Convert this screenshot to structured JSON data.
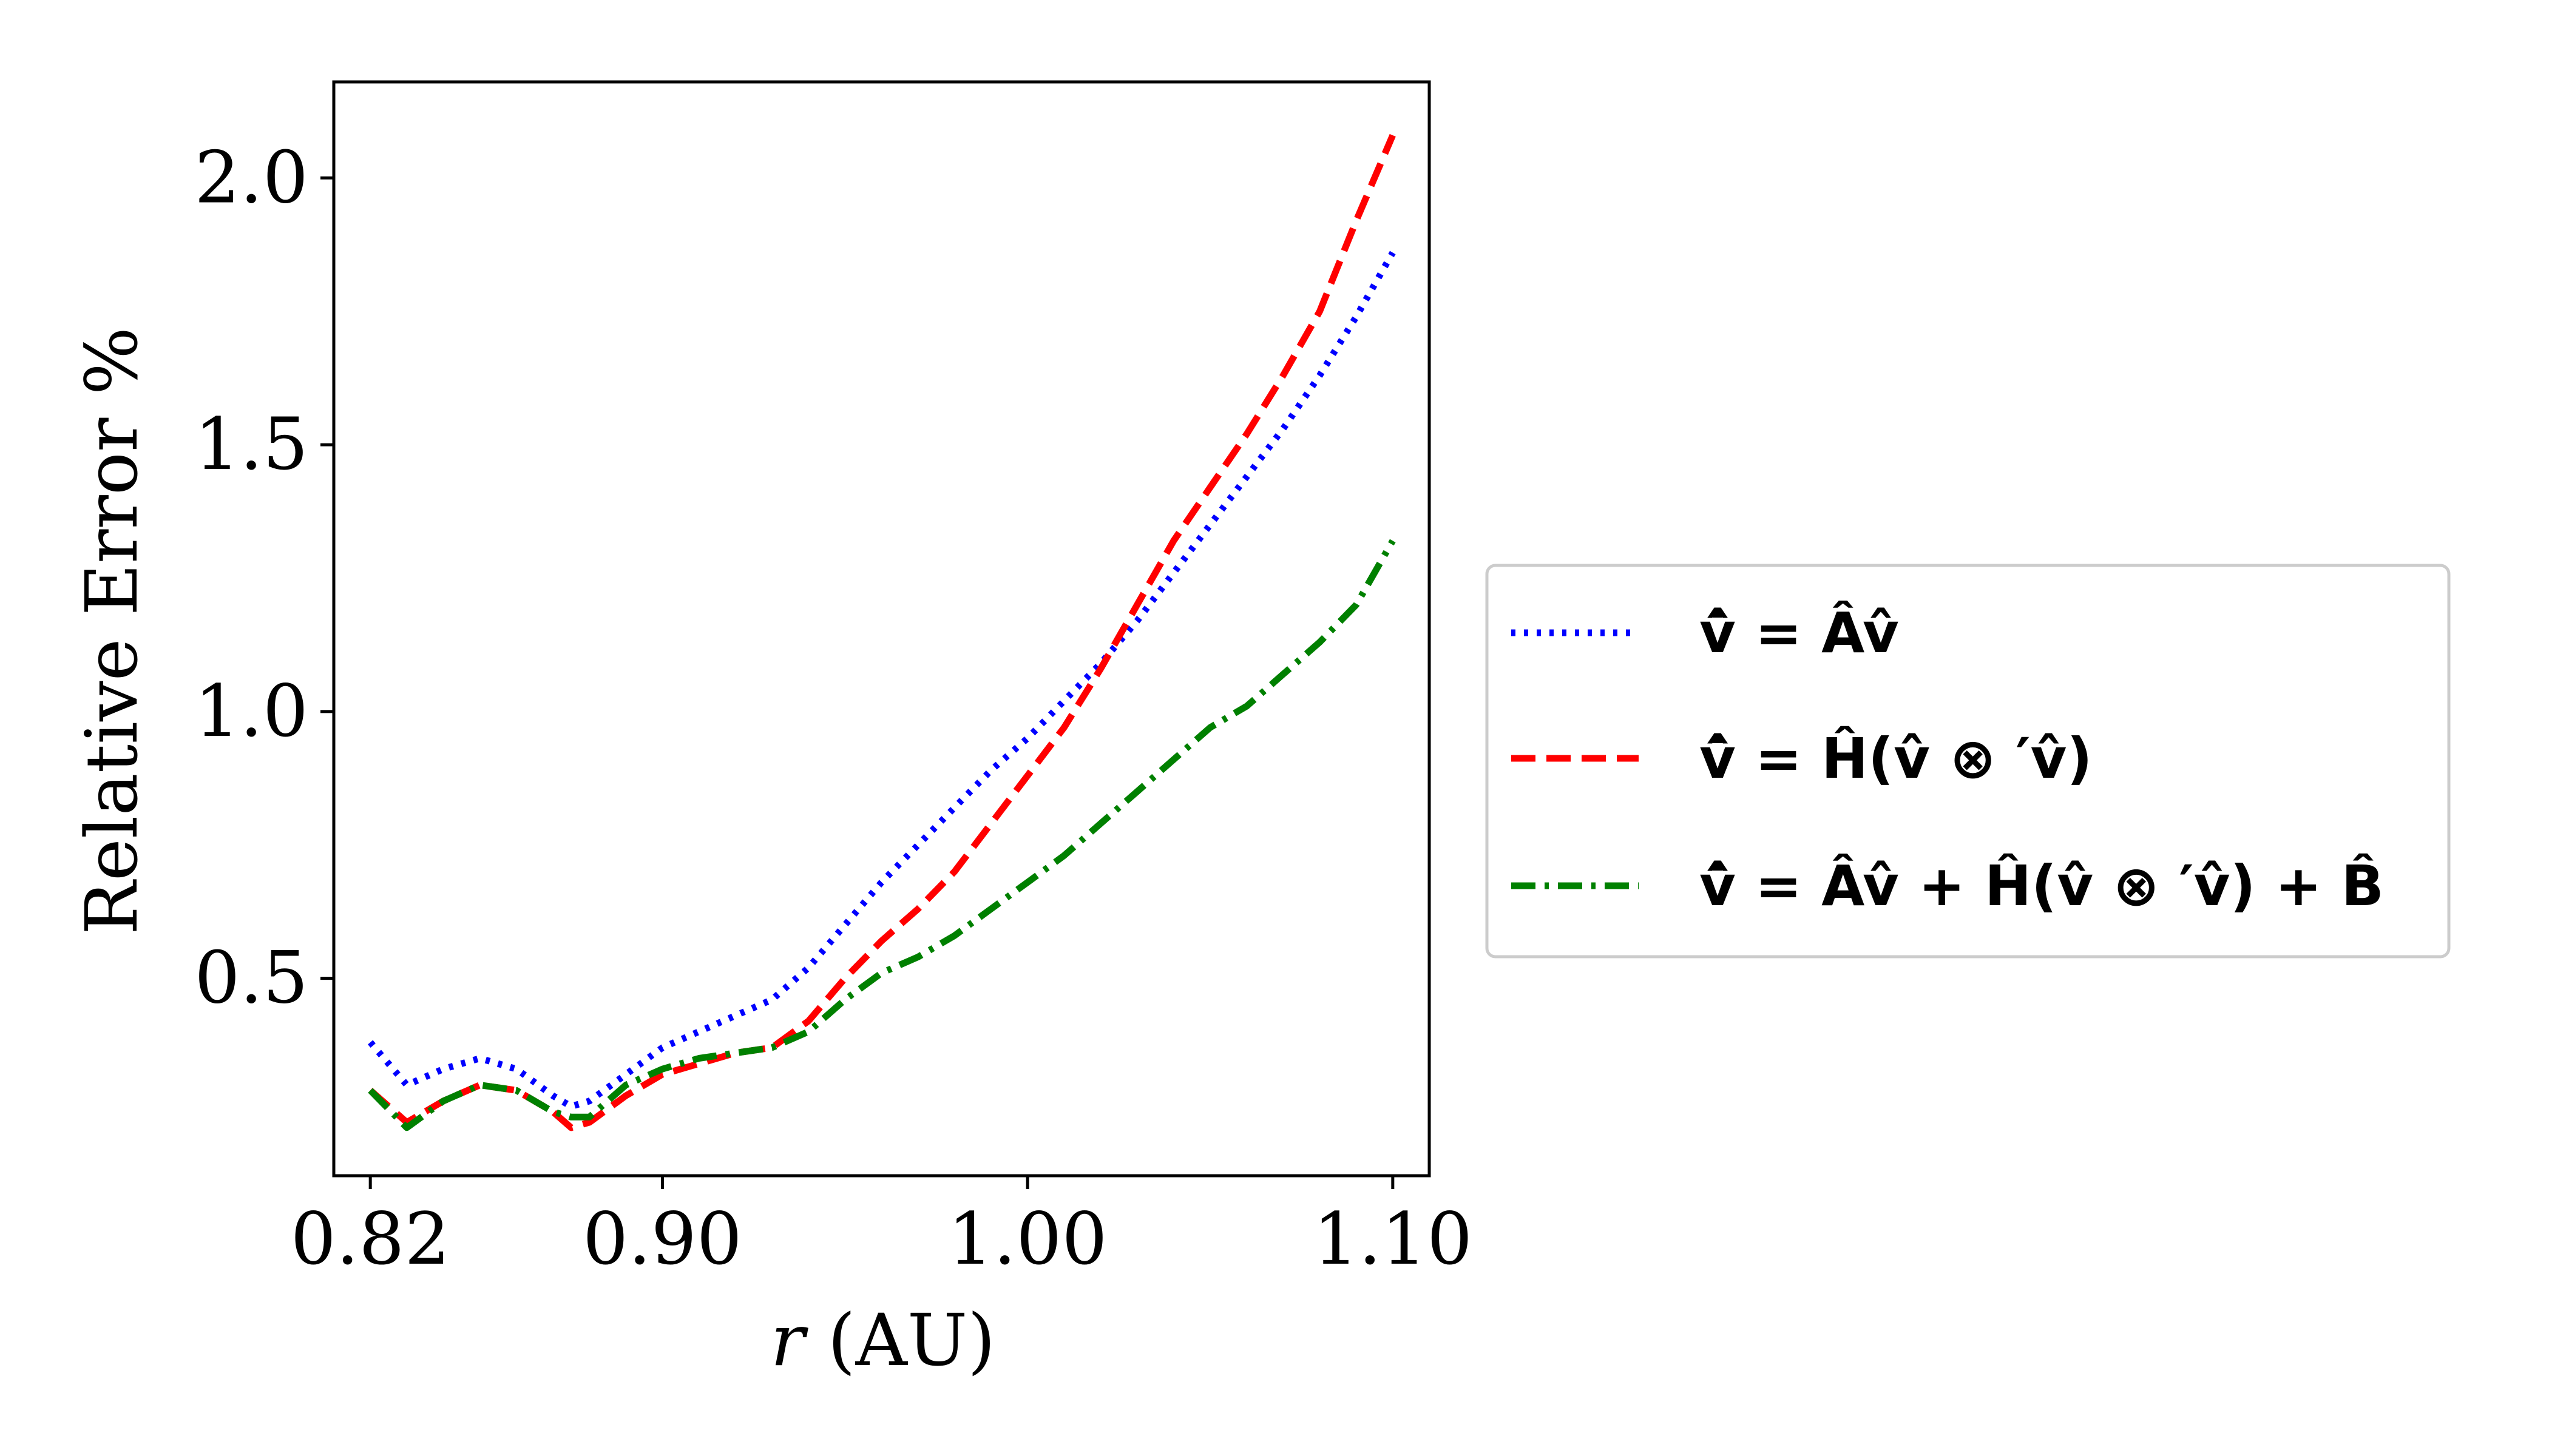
{
  "chart_data": {
    "type": "line",
    "xlabel": "r (AU)",
    "xlabel_italic_part": "r",
    "xlabel_rest": " (AU)",
    "ylabel": "Relative Error %",
    "xlim": [
      0.81,
      1.11
    ],
    "ylim": [
      0.13,
      2.18
    ],
    "xticks": [
      0.82,
      0.9,
      1.0,
      1.1
    ],
    "xtick_labels": [
      "0.82",
      "0.90",
      "1.00",
      "1.10"
    ],
    "yticks": [
      0.5,
      1.0,
      1.5,
      2.0
    ],
    "ytick_labels": [
      "0.5",
      "1.0",
      "1.5",
      "2.0"
    ],
    "grid": false,
    "legend_placement": "outside-right",
    "series": [
      {
        "name": "v̇ = Âv̂",
        "legend": {
          "lhs": "v̂̇",
          "rhs": " = Âv̂"
        },
        "color": "#0000ff",
        "style": "dotted",
        "x": [
          0.82,
          0.83,
          0.84,
          0.85,
          0.86,
          0.87,
          0.875,
          0.88,
          0.89,
          0.9,
          0.91,
          0.92,
          0.93,
          0.94,
          0.95,
          0.96,
          0.97,
          0.98,
          0.99,
          1.0,
          1.01,
          1.02,
          1.03,
          1.04,
          1.05,
          1.06,
          1.07,
          1.08,
          1.09,
          1.1
        ],
        "y": [
          0.38,
          0.3,
          0.33,
          0.35,
          0.33,
          0.28,
          0.26,
          0.27,
          0.32,
          0.37,
          0.4,
          0.43,
          0.46,
          0.52,
          0.6,
          0.68,
          0.75,
          0.82,
          0.89,
          0.95,
          1.02,
          1.09,
          1.17,
          1.26,
          1.35,
          1.44,
          1.53,
          1.63,
          1.74,
          1.86
        ]
      },
      {
        "name": "v̇ = Ĥ(v̂ ⊗ ′v̂)",
        "legend": {
          "lhs": "v̂̇",
          "rhs": " = Ĥ(v̂ ⊗ ′v̂)"
        },
        "color": "#ff0000",
        "style": "dashed",
        "x": [
          0.82,
          0.83,
          0.84,
          0.85,
          0.86,
          0.87,
          0.875,
          0.88,
          0.89,
          0.9,
          0.91,
          0.92,
          0.93,
          0.94,
          0.95,
          0.96,
          0.97,
          0.98,
          0.99,
          1.0,
          1.01,
          1.02,
          1.03,
          1.04,
          1.05,
          1.06,
          1.07,
          1.08,
          1.09,
          1.1
        ],
        "y": [
          0.29,
          0.23,
          0.27,
          0.3,
          0.29,
          0.25,
          0.22,
          0.23,
          0.28,
          0.32,
          0.34,
          0.36,
          0.37,
          0.42,
          0.5,
          0.57,
          0.63,
          0.7,
          0.79,
          0.88,
          0.97,
          1.08,
          1.2,
          1.32,
          1.42,
          1.52,
          1.63,
          1.75,
          1.92,
          2.08
        ]
      },
      {
        "name": "v̇ = Âv̂ + Ĥ(v̂ ⊗ ′v̂) + B̂",
        "legend": {
          "lhs": "v̂̇",
          "rhs": " = Âv̂ + Ĥ(v̂ ⊗ ′v̂) + B̂"
        },
        "color": "#008000",
        "style": "dashdot",
        "x": [
          0.82,
          0.83,
          0.84,
          0.85,
          0.86,
          0.87,
          0.875,
          0.88,
          0.89,
          0.9,
          0.91,
          0.92,
          0.93,
          0.94,
          0.95,
          0.96,
          0.97,
          0.98,
          0.99,
          1.0,
          1.01,
          1.02,
          1.03,
          1.04,
          1.05,
          1.06,
          1.07,
          1.08,
          1.09,
          1.1
        ],
        "y": [
          0.29,
          0.22,
          0.27,
          0.3,
          0.29,
          0.25,
          0.24,
          0.24,
          0.3,
          0.33,
          0.35,
          0.36,
          0.37,
          0.4,
          0.46,
          0.51,
          0.54,
          0.58,
          0.63,
          0.68,
          0.73,
          0.79,
          0.85,
          0.91,
          0.97,
          1.01,
          1.07,
          1.13,
          1.2,
          1.32
        ]
      }
    ]
  }
}
